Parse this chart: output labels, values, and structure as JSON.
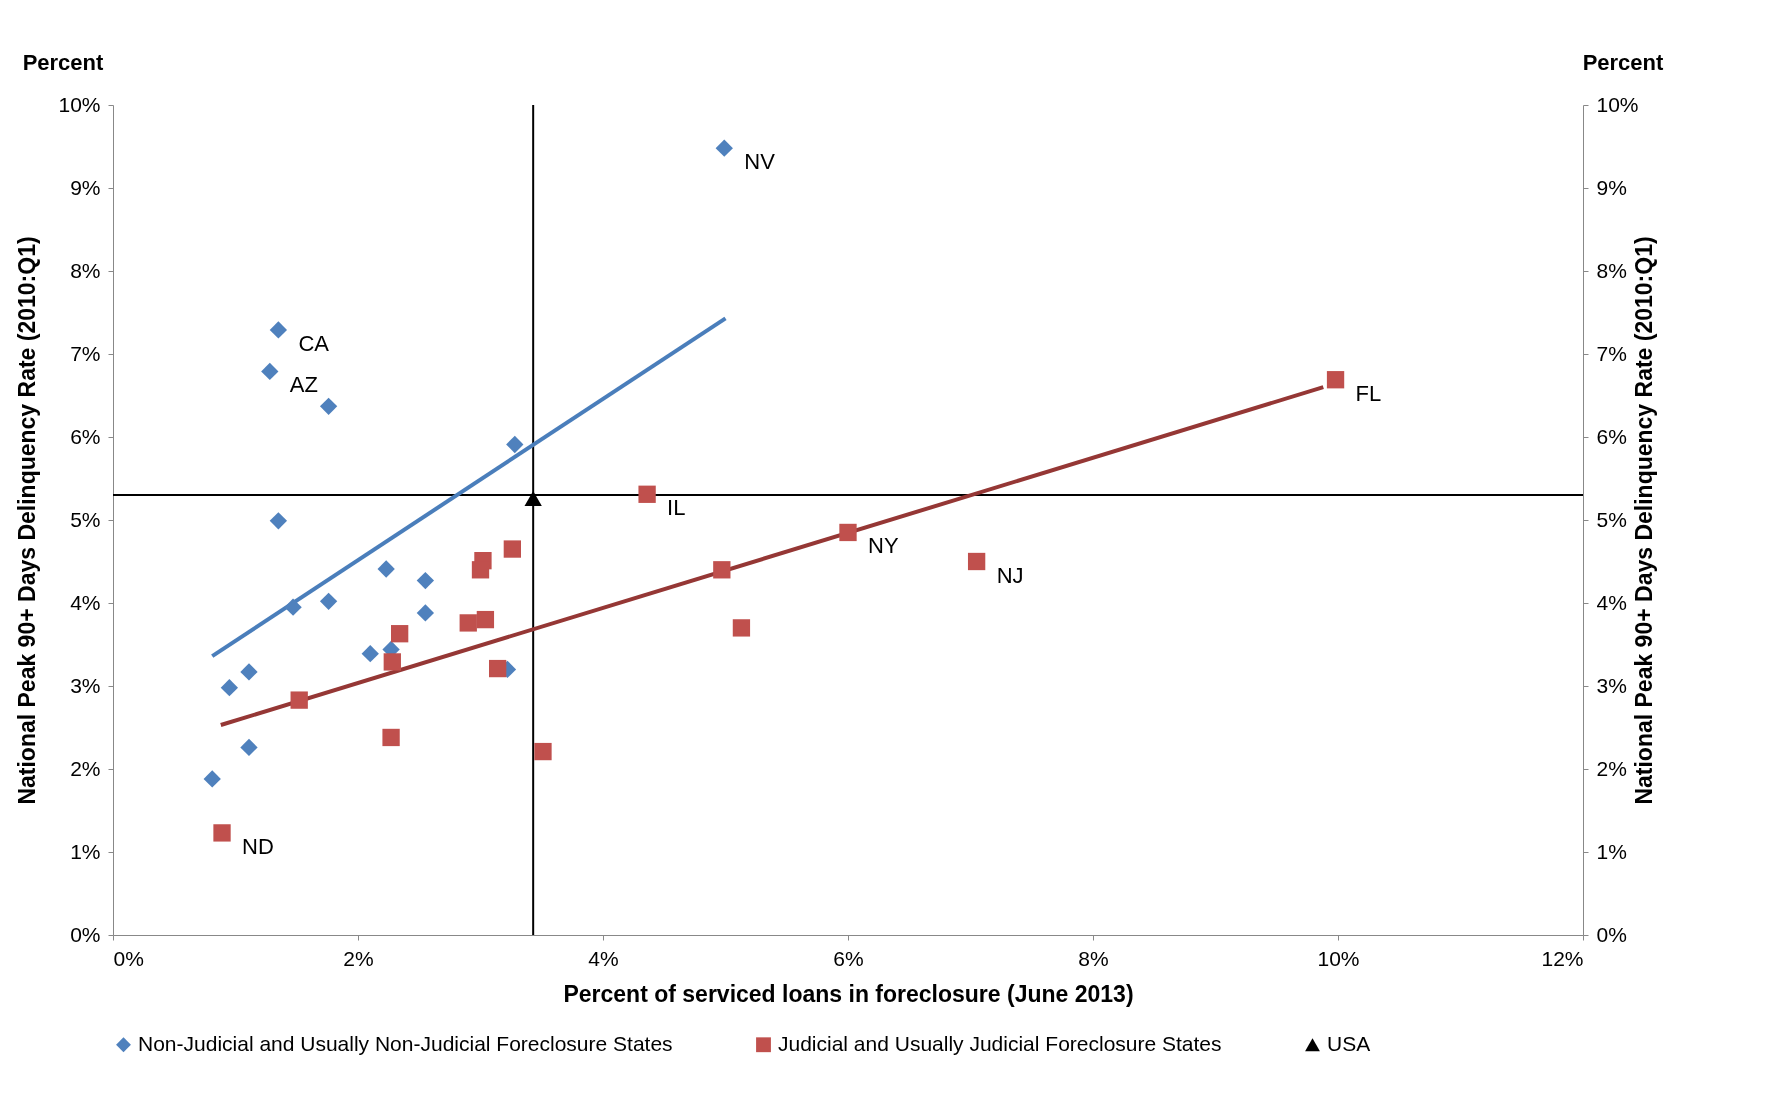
{
  "chart_data": {
    "type": "scatter",
    "xlabel": "Percent of serviced loans in foreclosure (June 2013)",
    "ylabel": "National Peak 90+ Days Delinquency Rate  (2010:Q1)",
    "y2label": "National Peak 90+ Days Delinquency Rate  (2010:Q1)",
    "xlim": [
      0,
      12
    ],
    "xticks": [
      {
        "value": 0,
        "label": "0%"
      },
      {
        "value": 2,
        "label": "2%"
      },
      {
        "value": 4,
        "label": "4%"
      },
      {
        "value": 6,
        "label": "6%"
      },
      {
        "value": 8,
        "label": "8%"
      },
      {
        "value": 10,
        "label": "10%"
      },
      {
        "value": 12,
        "label": "12%"
      }
    ],
    "ylim": [
      0,
      10
    ],
    "yticks": [
      {
        "value": 0,
        "label": "0%"
      },
      {
        "value": 1,
        "label": "1%"
      },
      {
        "value": 2,
        "label": "2%"
      },
      {
        "value": 3,
        "label": "3%"
      },
      {
        "value": 4,
        "label": "4%"
      },
      {
        "value": 5,
        "label": "5%"
      },
      {
        "value": 6,
        "label": "6%"
      },
      {
        "value": 7,
        "label": "7%"
      },
      {
        "value": 8,
        "label": "8%"
      },
      {
        "value": 9,
        "label": "9%"
      },
      {
        "value": 10,
        "label": "10%"
      }
    ],
    "y2lim": [
      0,
      10
    ],
    "y2ticks": [
      {
        "value": 0,
        "label": "0%"
      },
      {
        "value": 1,
        "label": "1%"
      },
      {
        "value": 2,
        "label": "2%"
      },
      {
        "value": 3,
        "label": "3%"
      },
      {
        "value": 4,
        "label": "4%"
      },
      {
        "value": 5,
        "label": "5%"
      },
      {
        "value": 6,
        "label": "6%"
      },
      {
        "value": 7,
        "label": "7%"
      },
      {
        "value": 8,
        "label": "8%"
      },
      {
        "value": 9,
        "label": "9%"
      },
      {
        "value": 10,
        "label": "10%"
      }
    ],
    "grid": false,
    "legend": "bottom",
    "series": [
      {
        "name": "Non-Judicial and Usually Non-Judicial Foreclosure States",
        "color": "#4f81bd",
        "marker": "diamond",
        "x": [
          4.99,
          1.35,
          1.28,
          1.76,
          3.28,
          1.35,
          2.23,
          2.55,
          1.47,
          1.76,
          2.55,
          2.1,
          2.27,
          1.11,
          0.95,
          3.22,
          1.11,
          0.81
        ],
        "values": [
          9.48,
          7.29,
          6.79,
          6.37,
          5.91,
          4.99,
          4.41,
          4.27,
          3.95,
          4.02,
          3.88,
          3.39,
          3.44,
          3.17,
          2.98,
          3.2,
          2.26,
          1.88
        ]
      },
      {
        "name": "Judicial and Usually Judicial Foreclosure States",
        "color": "#c0504d",
        "marker": "square",
        "x": [
          9.98,
          4.36,
          6.0,
          7.05,
          4.97,
          5.13,
          3.26,
          3.02,
          3.0,
          3.04,
          2.9,
          2.34,
          2.28,
          3.14,
          1.52,
          2.27,
          3.51,
          0.89
        ],
        "values": [
          6.69,
          5.31,
          4.85,
          4.5,
          4.4,
          3.7,
          4.65,
          4.51,
          4.4,
          3.8,
          3.76,
          3.63,
          3.29,
          3.21,
          2.83,
          2.38,
          2.21,
          1.23
        ]
      },
      {
        "name": "USA",
        "color": "#000000",
        "marker": "triangle",
        "x": [
          3.43
        ],
        "values": [
          5.26
        ]
      },
      {
        "type": "line",
        "color": "#4a7ebb",
        "x": [
          0.81,
          5.0
        ],
        "values": [
          3.36,
          7.43
        ]
      },
      {
        "type": "line",
        "color": "#953735",
        "x": [
          0.88,
          9.88
        ],
        "values": [
          2.53,
          6.6
        ]
      }
    ],
    "ref_lines": [
      {
        "axis": "x",
        "value": 3.43,
        "color": "#000000"
      },
      {
        "axis": "y",
        "value": 5.3,
        "color": "#000000"
      }
    ],
    "annotations": [
      "Percent",
      "Percent",
      {
        "text": "NV",
        "x": 4.99,
        "y": 9.48
      },
      {
        "text": "CA",
        "x": 1.35,
        "y": 7.29
      },
      {
        "text": "AZ",
        "x": 1.28,
        "y": 6.79
      },
      {
        "text": "FL",
        "x": 9.98,
        "y": 6.69
      },
      {
        "text": "IL",
        "x": 4.36,
        "y": 5.31
      },
      {
        "text": "NY",
        "x": 6.0,
        "y": 4.85
      },
      {
        "text": "NJ",
        "x": 7.05,
        "y": 4.5
      },
      {
        "text": "ND",
        "x": 0.89,
        "y": 1.23
      }
    ]
  }
}
